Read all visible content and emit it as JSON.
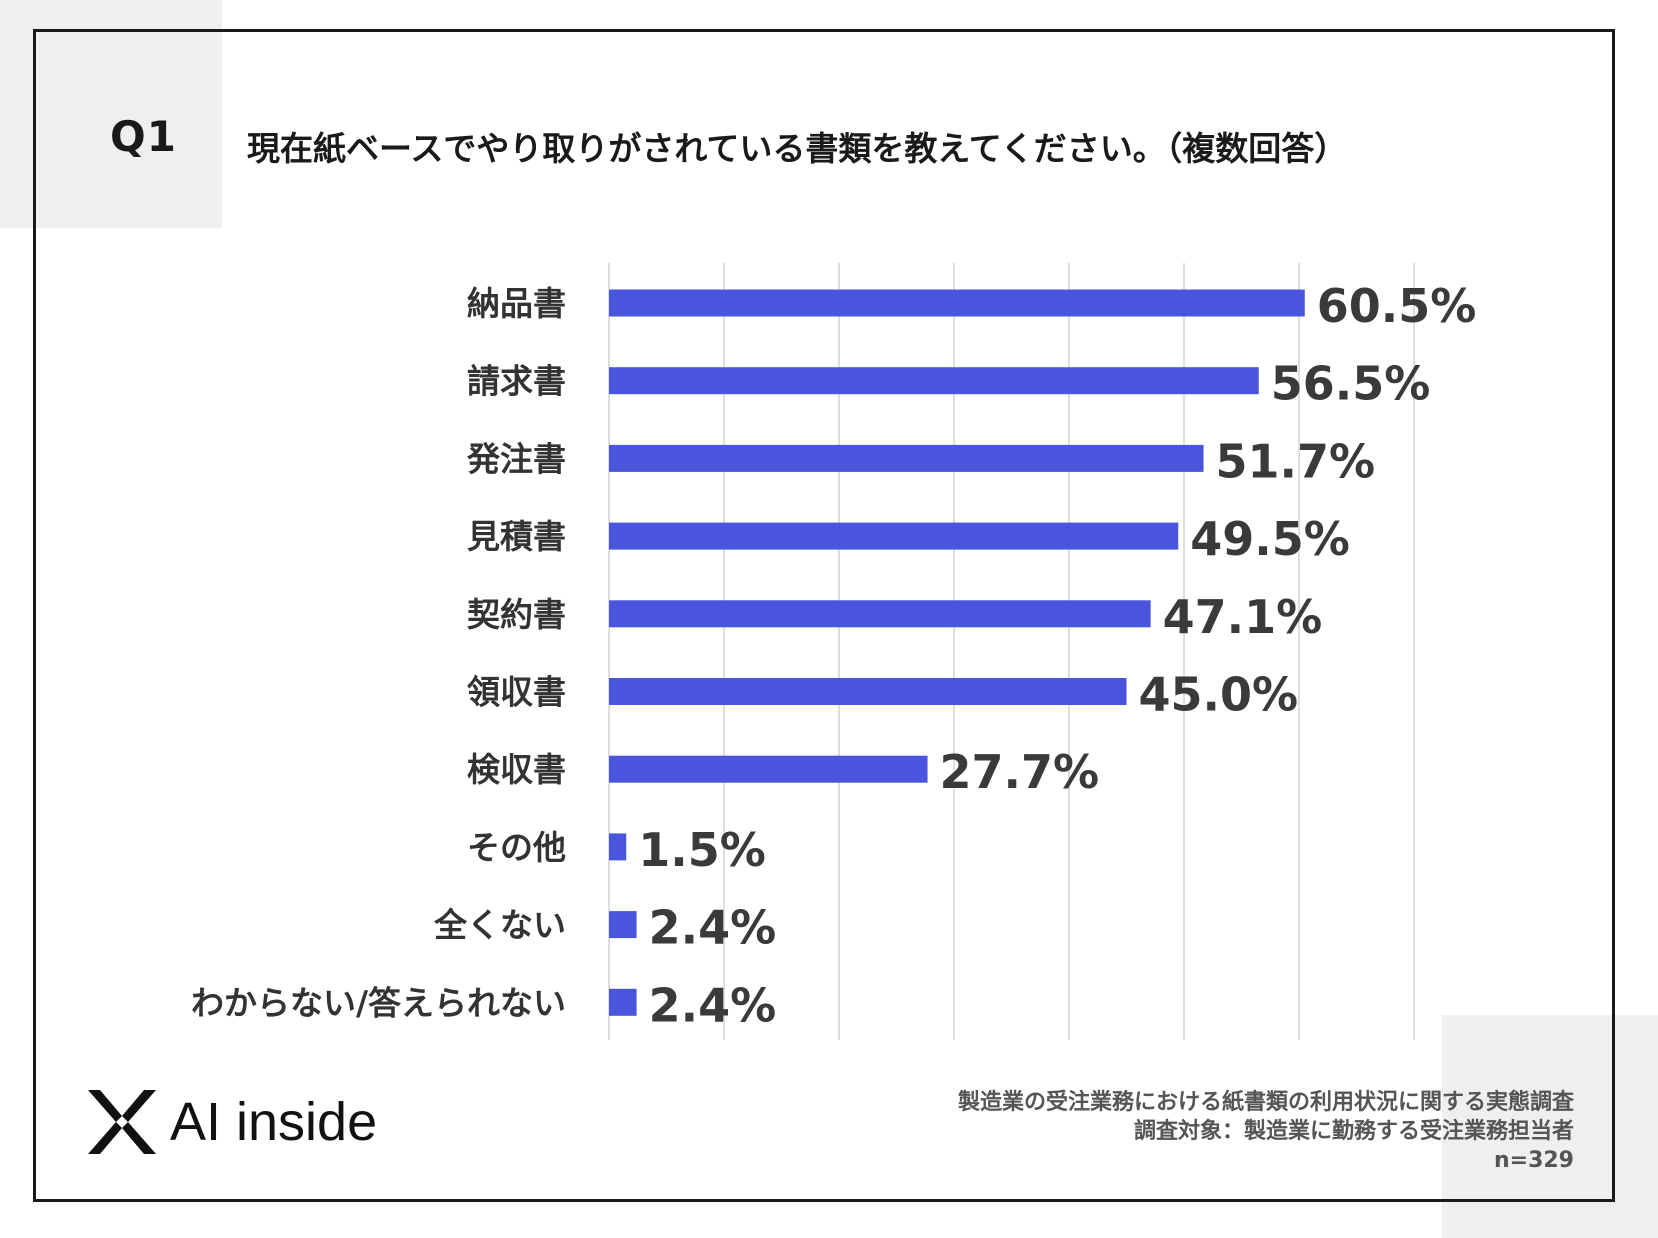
{
  "question": {
    "number": "Q1",
    "text": "現在紙ベースでやり取りがされている書類を教えてください。（複数回答）"
  },
  "chart_data": {
    "type": "bar",
    "orientation": "horizontal",
    "title": "現在紙ベースでやり取りがされている書類を教えてください。（複数回答）",
    "categories": [
      "納品書",
      "請求書",
      "発注書",
      "見積書",
      "契約書",
      "領収書",
      "検収書",
      "その他",
      "全くない",
      "わからない/答えられない"
    ],
    "values": [
      60.5,
      56.5,
      51.7,
      49.5,
      47.1,
      45.0,
      27.7,
      1.5,
      2.4,
      2.4
    ],
    "value_labels": [
      "60.5%",
      "56.5%",
      "51.7%",
      "49.5%",
      "47.1%",
      "45.0%",
      "27.7%",
      "1.5%",
      "2.4%",
      "2.4%"
    ],
    "xlim": [
      0,
      70
    ],
    "grid_step": 10,
    "grid": true,
    "bar_color": "#4a55dd",
    "grid_color": "#d4d4d4"
  },
  "logo": {
    "icon": "x-logo-icon",
    "text": "AI inside"
  },
  "footnote": {
    "line1": "製造業の受注業務における紙書類の利用状況に関する実態調査",
    "line2": "調査対象：製造業に勤務する受注業務担当者",
    "line3": "n=329"
  }
}
